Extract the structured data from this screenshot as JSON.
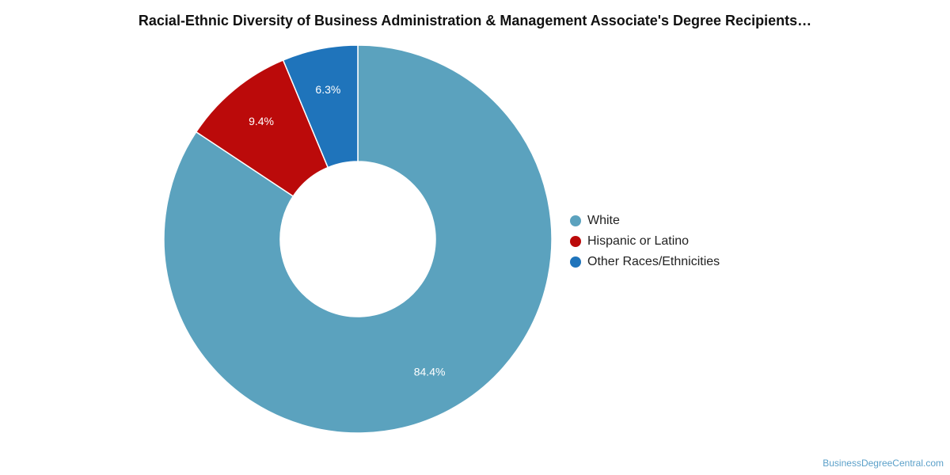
{
  "chart_data": {
    "type": "pie",
    "title": "Racial-Ethnic Diversity of Business Administration & Management Associate's Degree Recipients…",
    "donut": true,
    "legend_position": "right",
    "slices": [
      {
        "name": "White",
        "value": 84.4,
        "label": "84.4%",
        "color": "#5ba2be"
      },
      {
        "name": "Hispanic or Latino",
        "value": 9.4,
        "label": "9.4%",
        "color": "#bb0a0a"
      },
      {
        "name": "Other Races/Ethnicities",
        "value": 6.3,
        "label": "6.3%",
        "color": "#1f74bb"
      }
    ]
  },
  "source": "BusinessDegreeCentral.com"
}
